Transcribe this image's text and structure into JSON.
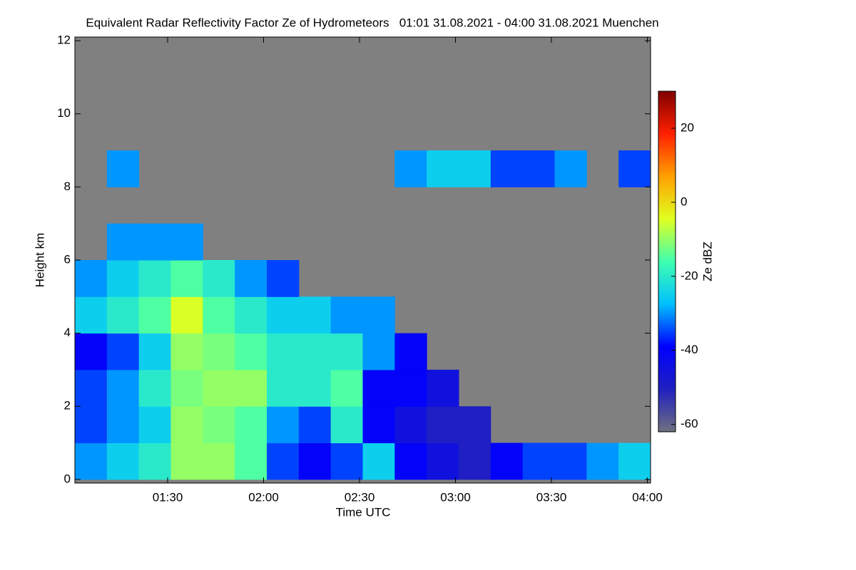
{
  "chart_data": {
    "type": "heatmap",
    "title": "Equivalent Radar Reflectivity Factor Ze of Hydrometeors   01:01 31.08.2021 - 04:00 31.08.2021 Muenchen",
    "x_label": "Time UTC",
    "y_label": "Height km",
    "colorbar_label": "Ze dBZ",
    "background": "#808080",
    "xlim": [
      61,
      241
    ],
    "xticks": [
      {
        "value": 90,
        "label": "01:30"
      },
      {
        "value": 120,
        "label": "02:00"
      },
      {
        "value": 150,
        "label": "02:30"
      },
      {
        "value": 180,
        "label": "03:00"
      },
      {
        "value": 210,
        "label": "03:30"
      },
      {
        "value": 240,
        "label": "04:00"
      }
    ],
    "ylim": [
      -0.1,
      12.1
    ],
    "yticks": [
      0,
      2,
      4,
      6,
      8,
      10,
      12
    ],
    "clim": [
      -62,
      30
    ],
    "cticks": [
      20,
      0,
      -20,
      -40,
      -60
    ],
    "colormap": [
      "#707080",
      "#2020c0",
      "#0000ff",
      "#00c0ff",
      "#40ffb0",
      "#e0ff20",
      "#ffa000",
      "#ff2000",
      "#800000"
    ],
    "x_edges": [
      61,
      71,
      81,
      91,
      101,
      111,
      121,
      131,
      141,
      151,
      161,
      171,
      181,
      191,
      201,
      211,
      221,
      231,
      241
    ],
    "y_edges": [
      0,
      1,
      2,
      3,
      4,
      5,
      6,
      7,
      8,
      9,
      10,
      11,
      12
    ],
    "z": [
      [
        -30,
        -25,
        -20,
        -10,
        -10,
        -15,
        -35,
        -40,
        -35,
        -25,
        -40,
        -45,
        -50,
        -40,
        -35,
        -35,
        -30,
        -25
      ],
      [
        -35,
        -30,
        -25,
        -10,
        -12,
        -15,
        -30,
        -35,
        -20,
        -40,
        -45,
        -50,
        -50,
        null,
        null,
        null,
        null,
        null
      ],
      [
        -35,
        -30,
        -20,
        -12,
        -10,
        -10,
        -20,
        -20,
        -15,
        -40,
        -40,
        -45,
        null,
        null,
        null,
        null,
        null,
        null
      ],
      [
        -40,
        -35,
        -25,
        -10,
        -12,
        -15,
        -20,
        -20,
        -20,
        -30,
        -40,
        null,
        null,
        null,
        null,
        null,
        null,
        null
      ],
      [
        -25,
        -20,
        -15,
        -5,
        -15,
        -20,
        -25,
        -25,
        -30,
        -30,
        null,
        null,
        null,
        null,
        null,
        null,
        null,
        null
      ],
      [
        -30,
        -25,
        -20,
        -15,
        -20,
        -30,
        -35,
        null,
        null,
        null,
        null,
        null,
        null,
        null,
        null,
        null,
        null,
        null
      ],
      [
        null,
        -30,
        -30,
        -30,
        null,
        null,
        null,
        null,
        null,
        null,
        null,
        null,
        null,
        null,
        null,
        null,
        null,
        null
      ],
      [
        null,
        null,
        null,
        null,
        null,
        null,
        null,
        null,
        null,
        null,
        null,
        null,
        null,
        null,
        null,
        null,
        null,
        null
      ],
      [
        null,
        -30,
        null,
        null,
        null,
        null,
        null,
        null,
        null,
        null,
        -30,
        -25,
        -25,
        -35,
        -35,
        -30,
        null,
        -35
      ],
      [
        null,
        null,
        null,
        null,
        null,
        null,
        null,
        null,
        null,
        null,
        null,
        null,
        null,
        null,
        null,
        null,
        null,
        null
      ],
      [
        null,
        null,
        null,
        null,
        null,
        null,
        null,
        null,
        null,
        null,
        null,
        null,
        null,
        null,
        null,
        null,
        null,
        null
      ],
      [
        null,
        null,
        null,
        null,
        null,
        null,
        null,
        null,
        null,
        null,
        null,
        null,
        null,
        null,
        null,
        null,
        null,
        null
      ]
    ]
  }
}
